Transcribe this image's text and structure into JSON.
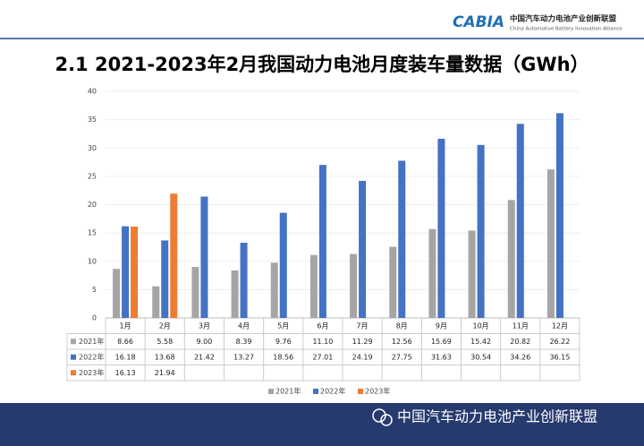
{
  "header": {
    "logo": "CABIA",
    "org_name": "中国汽车动力电池产业创新联盟",
    "org_name_en": "China Automotive Battery Innovation Alliance"
  },
  "footer": {
    "text": "中国汽车动力电池产业创新联盟"
  },
  "chart_data": {
    "type": "bar",
    "title": "2.1 2021-2023年2月我国动力电池月度装车量数据（GWh）",
    "categories": [
      "1月",
      "2月",
      "3月",
      "4月",
      "5月",
      "6月",
      "7月",
      "8月",
      "9月",
      "10月",
      "11月",
      "12月"
    ],
    "series": [
      {
        "name": "2021年",
        "color": "#a5a5a5",
        "values": [
          8.66,
          5.58,
          9.0,
          8.39,
          9.76,
          11.1,
          11.29,
          12.56,
          15.69,
          15.42,
          20.82,
          26.22
        ],
        "value_labels": [
          "8.66",
          "5.58",
          "9.00",
          "8.39",
          "9.76",
          "11.10",
          "11.29",
          "12.56",
          "15.69",
          "15.42",
          "20.82",
          "26.22"
        ]
      },
      {
        "name": "2022年",
        "color": "#4472c4",
        "values": [
          16.18,
          13.68,
          21.42,
          13.27,
          18.56,
          27.01,
          24.19,
          27.75,
          31.63,
          30.54,
          34.26,
          36.15
        ],
        "value_labels": [
          "16.18",
          "13.68",
          "21.42",
          "13.27",
          "18.56",
          "27.01",
          "24.19",
          "27.75",
          "31.63",
          "30.54",
          "34.26",
          "36.15"
        ]
      },
      {
        "name": "2023年",
        "color": "#ed7d31",
        "values": [
          16.13,
          21.94,
          null,
          null,
          null,
          null,
          null,
          null,
          null,
          null,
          null,
          null
        ],
        "value_labels": [
          "16.13",
          "21.94",
          null,
          null,
          null,
          null,
          null,
          null,
          null,
          null,
          null,
          null
        ]
      }
    ],
    "ylim": [
      0,
      40
    ],
    "yticks": [
      0,
      5,
      10,
      15,
      20,
      25,
      30,
      35,
      40
    ],
    "grid": true,
    "legend": "bottom"
  }
}
